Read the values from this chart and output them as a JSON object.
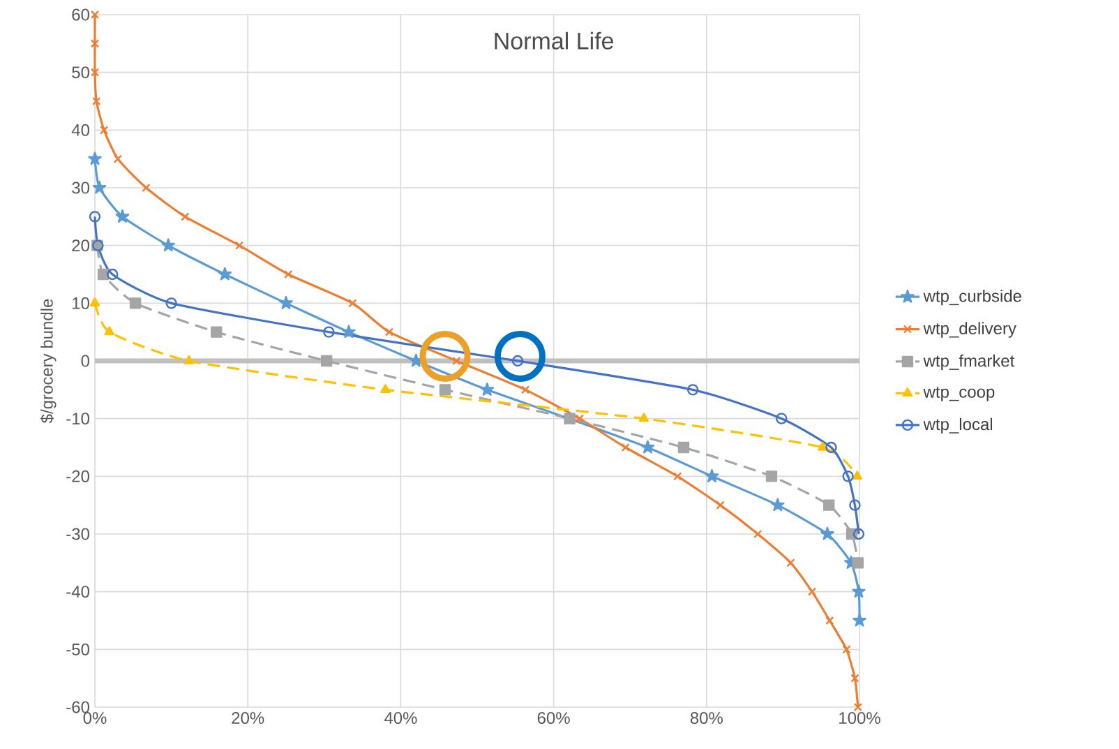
{
  "chart_data": {
    "type": "line",
    "title": "Normal Life",
    "ylabel": "$/grocery bundle",
    "xlim": [
      0,
      100
    ],
    "ylim": [
      -60,
      60
    ],
    "xticks": [
      {
        "value": 0,
        "label": "0%"
      },
      {
        "value": 20,
        "label": "20%"
      },
      {
        "value": 40,
        "label": "40%"
      },
      {
        "value": 60,
        "label": "60%"
      },
      {
        "value": 80,
        "label": "80%"
      },
      {
        "value": 100,
        "label": "100%"
      }
    ],
    "yticks": [
      -60,
      -50,
      -40,
      -30,
      -20,
      -10,
      0,
      10,
      20,
      30,
      40,
      50,
      60
    ],
    "grid": true,
    "legend": "right",
    "ref_lines": [
      {
        "axis": "y",
        "value": 0,
        "color": "#bfbfbf"
      }
    ],
    "series": [
      {
        "name": "wtp_curbside",
        "color": "#5b9bd5",
        "marker": "star",
        "line_style": "solid",
        "x": [
          0,
          0.6,
          3.6,
          9.6,
          17,
          25,
          33.2,
          42,
          51.3,
          62,
          72.3,
          80.7,
          89.3,
          95.8,
          98.9,
          99.9,
          100
        ],
        "values": [
          35,
          30,
          25,
          20,
          15,
          10,
          5,
          0,
          -5,
          -10,
          -15,
          -20,
          -25,
          -30,
          -35,
          -40,
          -45
        ]
      },
      {
        "name": "wtp_delivery",
        "color": "#ed7d31",
        "marker": "cross",
        "line_style": "solid",
        "x": [
          0,
          0,
          0,
          0.2,
          1.2,
          3,
          6.7,
          11.8,
          18.9,
          25.3,
          33.7,
          38.5,
          47.3,
          56.3,
          63.4,
          69.4,
          76.2,
          81.8,
          86.7,
          91,
          93.8,
          96.1,
          98.3,
          99.4,
          99.8
        ],
        "values": [
          60,
          55,
          50,
          45,
          40,
          35,
          30,
          25,
          20,
          15,
          10,
          5,
          0,
          -5,
          -10,
          -15,
          -20,
          -25,
          -30,
          -35,
          -40,
          -45,
          -50,
          -55,
          -60
        ]
      },
      {
        "name": "wtp_fmarket",
        "color": "#a5a5a5",
        "marker": "square",
        "line_style": "dashed",
        "x": [
          0.3,
          1.1,
          5.3,
          15.9,
          30.3,
          45.8,
          62.1,
          77,
          88.5,
          96,
          99,
          99.8
        ],
        "values": [
          20,
          15,
          10,
          5,
          0,
          -5,
          -10,
          -15,
          -20,
          -25,
          -30,
          -35
        ]
      },
      {
        "name": "wtp_coop",
        "color": "#ffc000",
        "marker": "triangle",
        "line_style": "dashed",
        "x": [
          0,
          1.9,
          12.3,
          38,
          71.8,
          95.2,
          99.7
        ],
        "values": [
          10,
          5,
          0,
          -5,
          -10,
          -15,
          -20
        ]
      },
      {
        "name": "wtp_local",
        "color": "#4472c4",
        "marker": "circle",
        "line_style": "solid",
        "x": [
          0,
          0.4,
          2.3,
          10,
          30.6,
          55.3,
          78.2,
          89.8,
          96.3,
          98.5,
          99.4,
          99.9
        ],
        "values": [
          25,
          20,
          15,
          10,
          5,
          0,
          -5,
          -10,
          -15,
          -20,
          -25,
          -30
        ]
      }
    ]
  }
}
